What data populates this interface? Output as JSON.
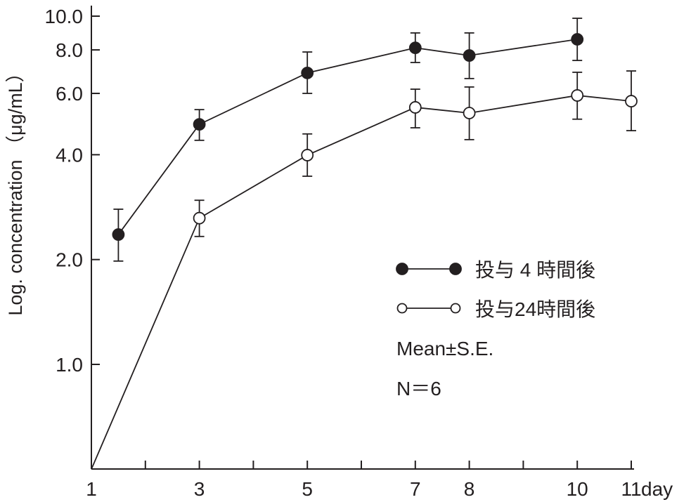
{
  "chart_data": {
    "type": "line",
    "title": "",
    "xlabel": "day",
    "ylabel": "Log. concentration （μg/mL）",
    "yscale": "log",
    "ylim": [
      0.5,
      10
    ],
    "xlim": [
      1,
      11
    ],
    "x_ticks": [
      1,
      2,
      3,
      4,
      5,
      6,
      7,
      8,
      9,
      10,
      11
    ],
    "x_tick_labels": [
      {
        "x": 1,
        "label": "1"
      },
      {
        "x": 3,
        "label": "3"
      },
      {
        "x": 5,
        "label": "5"
      },
      {
        "x": 7,
        "label": "7"
      },
      {
        "x": 8,
        "label": "8"
      },
      {
        "x": 10,
        "label": "10"
      },
      {
        "x": 11,
        "label": "11"
      }
    ],
    "y_tick_labels": [
      {
        "y": 10,
        "label": "10.0"
      },
      {
        "y": 8,
        "label": "8.0"
      },
      {
        "y": 6,
        "label": "6.0"
      },
      {
        "y": 4,
        "label": "4.0"
      },
      {
        "y": 2,
        "label": "2.0"
      },
      {
        "y": 1,
        "label": "1.0"
      }
    ],
    "grid": false,
    "legend_position": "center-right",
    "series": [
      {
        "name": "投与 4 時間後",
        "marker": "filled-circle",
        "color": "#231f20",
        "points": [
          {
            "x": 1.5,
            "y": 2.36,
            "lo": 1.98,
            "hi": 2.79
          },
          {
            "x": 3,
            "y": 4.89,
            "lo": 4.4,
            "hi": 5.39
          },
          {
            "x": 5,
            "y": 6.87,
            "lo": 6.0,
            "hi": 7.89
          },
          {
            "x": 7,
            "y": 8.11,
            "lo": 7.36,
            "hi": 8.95
          },
          {
            "x": 8,
            "y": 7.71,
            "lo": 6.62,
            "hi": 8.95
          },
          {
            "x": 10,
            "y": 8.58,
            "lo": 7.46,
            "hi": 9.86
          }
        ]
      },
      {
        "name": "投与24時間後",
        "marker": "open-circle",
        "color": "#231f20",
        "points": [
          {
            "x": 1,
            "y": 0.5,
            "no_marker": true
          },
          {
            "x": 3,
            "y": 2.63,
            "lo": 2.33,
            "hi": 2.96
          },
          {
            "x": 5,
            "y": 3.99,
            "lo": 3.47,
            "hi": 4.59
          },
          {
            "x": 7,
            "y": 5.47,
            "lo": 4.78,
            "hi": 6.17
          },
          {
            "x": 8,
            "y": 5.27,
            "lo": 4.42,
            "hi": 6.26
          },
          {
            "x": 10,
            "y": 5.92,
            "lo": 5.06,
            "hi": 6.9
          },
          {
            "x": 11,
            "y": 5.7,
            "lo": 4.69,
            "hi": 6.96
          }
        ]
      }
    ],
    "annotations": [
      "Mean±S.E.",
      "N＝6"
    ]
  }
}
